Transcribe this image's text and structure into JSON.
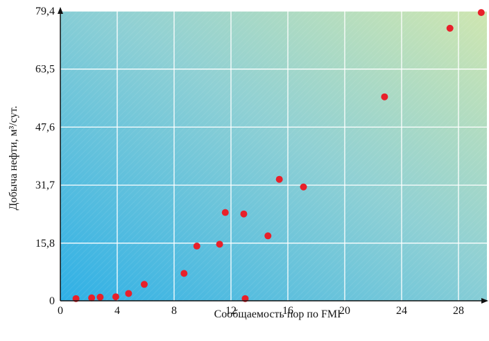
{
  "chart_data": {
    "type": "scatter",
    "xlabel": "Сообщаемость пор по FMI",
    "ylabel": "Добыча нефти, м³/сут.",
    "xlim": [
      0,
      30
    ],
    "ylim": [
      0,
      79.4
    ],
    "xticks": [
      0,
      4,
      8,
      12,
      16,
      20,
      24,
      28
    ],
    "xtick_labels": [
      "0",
      "4",
      "8",
      "12",
      "16",
      "20",
      "24",
      "28"
    ],
    "yticks": [
      0,
      15.8,
      31.7,
      47.6,
      63.5,
      79.4
    ],
    "ytick_labels": [
      "0",
      "15,8",
      "31,7",
      "47,6",
      "63,5",
      "79,4"
    ],
    "grid": true,
    "background": "gradient-blue-to-green",
    "point_color": "#e8202a",
    "series": [
      {
        "x": [
          1.1,
          2.2,
          2.8,
          3.9,
          4.8,
          5.9,
          8.7,
          9.6,
          11.2,
          11.6,
          12.9,
          13.0,
          14.6,
          15.4,
          17.1,
          22.8,
          27.4,
          29.6
        ],
        "y": [
          0.6,
          0.8,
          1.0,
          1.1,
          2.0,
          4.5,
          7.5,
          15.0,
          15.5,
          24.2,
          23.8,
          0.6,
          17.8,
          33.3,
          31.2,
          55.9,
          74.7,
          79.0
        ]
      }
    ]
  }
}
